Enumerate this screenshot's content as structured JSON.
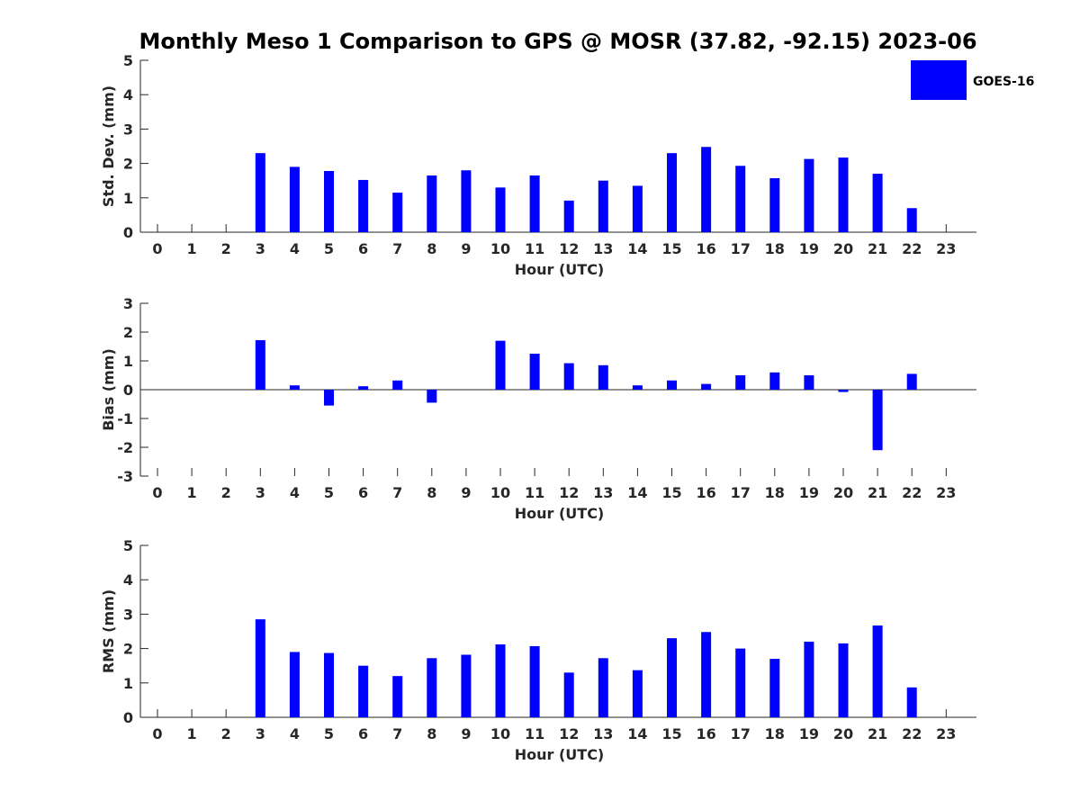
{
  "chart_data": {
    "title": "Monthly Meso 1 Comparison to GPS @ MOSR (37.82, -92.15) 2023-06",
    "legend": {
      "label": "GOES-16",
      "color": "#0000ff",
      "placement": "top-right"
    },
    "categories": [
      "0",
      "1",
      "2",
      "3",
      "4",
      "5",
      "6",
      "7",
      "8",
      "9",
      "10",
      "11",
      "12",
      "13",
      "14",
      "15",
      "16",
      "17",
      "18",
      "19",
      "20",
      "21",
      "22",
      "23"
    ],
    "panels": [
      {
        "type": "bar",
        "ylabel": "Std. Dev. (mm)",
        "xlabel": "Hour (UTC)",
        "ylim": [
          0,
          5
        ],
        "yticks": [
          "0",
          "1",
          "2",
          "3",
          "4",
          "5"
        ],
        "values": [
          null,
          null,
          null,
          2.3,
          1.9,
          1.78,
          1.52,
          1.15,
          1.65,
          1.8,
          1.3,
          1.65,
          0.92,
          1.5,
          1.35,
          2.3,
          2.48,
          1.93,
          1.57,
          2.13,
          2.17,
          1.7,
          0.7,
          null
        ]
      },
      {
        "type": "bar",
        "ylabel": "Bias (mm)",
        "xlabel": "Hour (UTC)",
        "ylim": [
          -3,
          3
        ],
        "yticks": [
          "-3",
          "-2",
          "-1",
          "0",
          "1",
          "2",
          "3"
        ],
        "values": [
          null,
          null,
          null,
          1.72,
          0.15,
          -0.55,
          0.12,
          0.32,
          -0.45,
          0.0,
          1.7,
          1.25,
          0.92,
          0.85,
          0.15,
          0.32,
          0.2,
          0.5,
          0.6,
          0.5,
          -0.08,
          -2.1,
          0.55,
          null
        ]
      },
      {
        "type": "bar",
        "ylabel": "RMS (mm)",
        "xlabel": "Hour (UTC)",
        "ylim": [
          0,
          5
        ],
        "yticks": [
          "0",
          "1",
          "2",
          "3",
          "4",
          "5"
        ],
        "values": [
          null,
          null,
          null,
          2.85,
          1.9,
          1.87,
          1.5,
          1.2,
          1.72,
          1.82,
          2.12,
          2.07,
          1.3,
          1.72,
          1.37,
          2.3,
          2.48,
          2.0,
          1.7,
          2.2,
          2.15,
          2.67,
          0.87,
          null
        ]
      }
    ]
  }
}
